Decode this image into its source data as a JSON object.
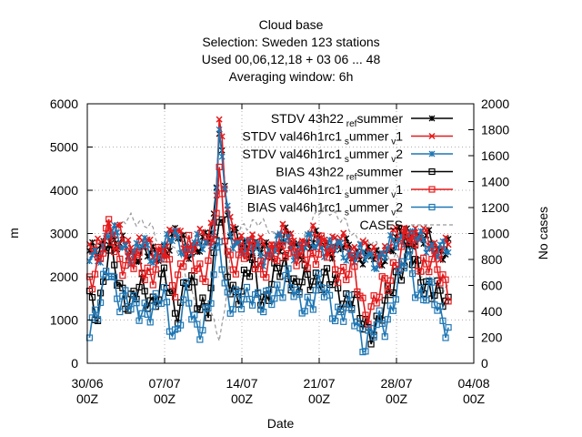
{
  "chart_data": {
    "type": "line",
    "title_lines": [
      "Cloud base",
      "Selection: Sweden    123 stations",
      "Used  00,06,12,18  + 03 06 ... 48",
      "Averaging window:  6h"
    ],
    "xlabel": "Date",
    "ylabel": "m",
    "y2label": "No cases",
    "ylim": [
      0,
      6000
    ],
    "y2lim": [
      0,
      2000
    ],
    "yticks": [
      "0",
      "1000",
      "2000",
      "3000",
      "4000",
      "5000",
      "6000"
    ],
    "y2ticks": [
      "0",
      "200",
      "400",
      "600",
      "800",
      "1000",
      "1200",
      "1400",
      "1600",
      "1800",
      "2000"
    ],
    "xticks": [
      {
        "date": "30/06",
        "hour": "00Z"
      },
      {
        "date": "07/07",
        "hour": "00Z"
      },
      {
        "date": "14/07",
        "hour": "00Z"
      },
      {
        "date": "21/07",
        "hour": "00Z"
      },
      {
        "date": "28/07",
        "hour": "00Z"
      },
      {
        "date": "04/08",
        "hour": "00Z"
      }
    ],
    "xlim_days": [
      0,
      35
    ],
    "grid": true,
    "legend_position": "top-right",
    "series": [
      {
        "name": "STDV 43h22",
        "sub": "ref",
        "mid": "summer",
        "color": "#000000",
        "marker": "star",
        "axis": "y",
        "anchors": [
          [
            0.2,
            2600
          ],
          [
            1,
            2450
          ],
          [
            2,
            3000
          ],
          [
            3,
            2700
          ],
          [
            4,
            2500
          ],
          [
            5,
            2650
          ],
          [
            6,
            2400
          ],
          [
            7,
            2700
          ],
          [
            8,
            2950
          ],
          [
            9,
            2650
          ],
          [
            10,
            2700
          ],
          [
            11,
            2800
          ],
          [
            11.6,
            3500
          ],
          [
            12,
            5900
          ],
          [
            12.5,
            3800
          ],
          [
            13,
            2900
          ],
          [
            14,
            2800
          ],
          [
            15,
            2650
          ],
          [
            16,
            2550
          ],
          [
            17,
            2700
          ],
          [
            18,
            2900
          ],
          [
            19,
            2600
          ],
          [
            20,
            2750
          ],
          [
            21,
            2800
          ],
          [
            22,
            2700
          ],
          [
            23,
            2650
          ],
          [
            24,
            2600
          ],
          [
            25,
            2500
          ],
          [
            26,
            2400
          ],
          [
            27,
            2550
          ],
          [
            28,
            2800
          ],
          [
            29,
            3050
          ],
          [
            30,
            2850
          ],
          [
            31,
            2800
          ],
          [
            32,
            2600
          ],
          [
            32.7,
            2700
          ]
        ],
        "amp": 300
      },
      {
        "name": "STDV val46h1rc1",
        "sub": "s",
        "mid": "ummer",
        "sub2": "v",
        "tail": "1",
        "color": "#e41a1c",
        "marker": "x",
        "axis": "y",
        "anchors": [
          [
            0.2,
            2500
          ],
          [
            1,
            2700
          ],
          [
            2,
            3200
          ],
          [
            3,
            2900
          ],
          [
            4,
            2700
          ],
          [
            5,
            2800
          ],
          [
            6,
            2500
          ],
          [
            7,
            2750
          ],
          [
            8,
            3000
          ],
          [
            9,
            2700
          ],
          [
            10,
            2800
          ],
          [
            11,
            2900
          ],
          [
            11.6,
            3600
          ],
          [
            12,
            5950
          ],
          [
            12.5,
            3900
          ],
          [
            13,
            3000
          ],
          [
            14,
            2900
          ],
          [
            15,
            2750
          ],
          [
            16,
            2650
          ],
          [
            17,
            2750
          ],
          [
            18,
            3000
          ],
          [
            19,
            2700
          ],
          [
            20,
            2850
          ],
          [
            21,
            2900
          ],
          [
            22,
            2800
          ],
          [
            23,
            2750
          ],
          [
            24,
            2700
          ],
          [
            25,
            2600
          ],
          [
            26,
            2500
          ],
          [
            27,
            2650
          ],
          [
            28,
            2900
          ],
          [
            29,
            3100
          ],
          [
            30,
            2900
          ],
          [
            31,
            2850
          ],
          [
            32,
            2650
          ],
          [
            32.7,
            2650
          ]
        ],
        "amp": 320
      },
      {
        "name": "STDV val46h1rc1",
        "sub": "s",
        "mid": "ummer",
        "sub2": "v",
        "tail": "2",
        "color": "#1f77b4",
        "marker": "star",
        "axis": "y",
        "anchors": [
          [
            0.2,
            2400
          ],
          [
            1,
            2500
          ],
          [
            2,
            3050
          ],
          [
            3,
            2750
          ],
          [
            4,
            2550
          ],
          [
            5,
            2700
          ],
          [
            6,
            2450
          ],
          [
            7,
            2700
          ],
          [
            8,
            2900
          ],
          [
            9,
            2650
          ],
          [
            10,
            2700
          ],
          [
            11,
            2750
          ],
          [
            11.6,
            3400
          ],
          [
            12,
            5600
          ],
          [
            12.5,
            3700
          ],
          [
            13,
            2850
          ],
          [
            14,
            2750
          ],
          [
            15,
            2600
          ],
          [
            16,
            2500
          ],
          [
            17,
            2700
          ],
          [
            18,
            2850
          ],
          [
            19,
            2600
          ],
          [
            20,
            2750
          ],
          [
            21,
            2800
          ],
          [
            22,
            2650
          ],
          [
            23,
            2600
          ],
          [
            24,
            2550
          ],
          [
            25,
            2450
          ],
          [
            26,
            2400
          ],
          [
            27,
            2550
          ],
          [
            28,
            2800
          ],
          [
            29,
            3000
          ],
          [
            30,
            2800
          ],
          [
            31,
            2750
          ],
          [
            32,
            2600
          ],
          [
            32.7,
            2550
          ]
        ],
        "amp": 300
      },
      {
        "name": "BIAS 43h22",
        "sub": "ref",
        "mid": "summer",
        "color": "#000000",
        "marker": "square",
        "axis": "y",
        "anchors": [
          [
            0.2,
            1500
          ],
          [
            1,
            1300
          ],
          [
            2,
            2500
          ],
          [
            3,
            1800
          ],
          [
            4,
            1400
          ],
          [
            5,
            1700
          ],
          [
            6,
            1500
          ],
          [
            7,
            1900
          ],
          [
            8,
            1200
          ],
          [
            9,
            2000
          ],
          [
            10,
            1300
          ],
          [
            11,
            1500
          ],
          [
            11.6,
            2600
          ],
          [
            12,
            3400
          ],
          [
            12.5,
            2400
          ],
          [
            13,
            1800
          ],
          [
            14,
            1700
          ],
          [
            15,
            2200
          ],
          [
            16,
            1500
          ],
          [
            17,
            1900
          ],
          [
            18,
            2400
          ],
          [
            19,
            1700
          ],
          [
            20,
            1900
          ],
          [
            21,
            2100
          ],
          [
            22,
            1800
          ],
          [
            23,
            1600
          ],
          [
            24,
            1500
          ],
          [
            25,
            800
          ],
          [
            26,
            900
          ],
          [
            27,
            1200
          ],
          [
            28,
            2100
          ],
          [
            29,
            2600
          ],
          [
            30,
            2000
          ],
          [
            31,
            1900
          ],
          [
            32,
            1400
          ],
          [
            32.7,
            1300
          ]
        ],
        "amp": 450
      },
      {
        "name": "BIAS val46h1rc1",
        "sub": "s",
        "mid": "ummer",
        "sub2": "v",
        "tail": "1",
        "color": "#e41a1c",
        "marker": "square",
        "axis": "y",
        "anchors": [
          [
            0.2,
            2100
          ],
          [
            1,
            2300
          ],
          [
            2,
            3000
          ],
          [
            3,
            2500
          ],
          [
            4,
            2200
          ],
          [
            5,
            2300
          ],
          [
            6,
            2100
          ],
          [
            7,
            2500
          ],
          [
            8,
            1900
          ],
          [
            9,
            2600
          ],
          [
            10,
            2200
          ],
          [
            11,
            2300
          ],
          [
            11.6,
            3100
          ],
          [
            12,
            4300
          ],
          [
            12.5,
            3000
          ],
          [
            13,
            2400
          ],
          [
            14,
            2300
          ],
          [
            15,
            2700
          ],
          [
            16,
            2100
          ],
          [
            17,
            2400
          ],
          [
            18,
            2900
          ],
          [
            19,
            2300
          ],
          [
            20,
            2500
          ],
          [
            21,
            2700
          ],
          [
            22,
            2400
          ],
          [
            23,
            2200
          ],
          [
            24,
            2100
          ],
          [
            25,
            1300
          ],
          [
            26,
            1400
          ],
          [
            27,
            1700
          ],
          [
            28,
            2500
          ],
          [
            29,
            2900
          ],
          [
            30,
            2400
          ],
          [
            31,
            2400
          ],
          [
            32,
            1900
          ],
          [
            32.7,
            1800
          ]
        ],
        "amp": 450
      },
      {
        "name": "BIAS val46h1rc1",
        "sub": "s",
        "mid": "ummer",
        "sub2": "v",
        "tail": "2",
        "color": "#1f77b4",
        "marker": "square",
        "axis": "y",
        "anchors": [
          [
            0.2,
            1000
          ],
          [
            1,
            1100
          ],
          [
            2,
            2300
          ],
          [
            3,
            1500
          ],
          [
            4,
            1200
          ],
          [
            5,
            1400
          ],
          [
            6,
            1100
          ],
          [
            7,
            1600
          ],
          [
            8,
            600
          ],
          [
            9,
            1500
          ],
          [
            10,
            900
          ],
          [
            11,
            1100
          ],
          [
            11.6,
            2100
          ],
          [
            12,
            3000
          ],
          [
            12.5,
            1800
          ],
          [
            13,
            1400
          ],
          [
            14,
            1300
          ],
          [
            15,
            1800
          ],
          [
            16,
            1200
          ],
          [
            17,
            1600
          ],
          [
            18,
            2100
          ],
          [
            19,
            1300
          ],
          [
            20,
            1500
          ],
          [
            21,
            1700
          ],
          [
            22,
            1400
          ],
          [
            23,
            1200
          ],
          [
            24,
            1100
          ],
          [
            25,
            600
          ],
          [
            26,
            700
          ],
          [
            27,
            900
          ],
          [
            28,
            1800
          ],
          [
            29,
            2400
          ],
          [
            30,
            1700
          ],
          [
            31,
            1600
          ],
          [
            32,
            1100
          ],
          [
            32.7,
            1000
          ]
        ],
        "amp": 450
      },
      {
        "name": "CASES",
        "color": "#999999",
        "marker": "none",
        "dash": true,
        "axis": "y2",
        "anchors": [
          [
            0.2,
            820
          ],
          [
            2,
            900
          ],
          [
            3,
            1050
          ],
          [
            4,
            1120
          ],
          [
            5,
            1100
          ],
          [
            6,
            1000
          ],
          [
            7,
            820
          ],
          [
            8,
            900
          ],
          [
            9,
            650
          ],
          [
            10,
            450
          ],
          [
            11,
            380
          ],
          [
            11.6,
            300
          ],
          [
            12,
            200
          ],
          [
            12.5,
            450
          ],
          [
            13,
            900
          ],
          [
            14,
            1050
          ],
          [
            15,
            1100
          ],
          [
            16,
            1050
          ],
          [
            17,
            1000
          ],
          [
            18,
            900
          ],
          [
            19,
            850
          ],
          [
            20,
            1050
          ],
          [
            21,
            1150
          ],
          [
            22,
            1200
          ],
          [
            23,
            1100
          ],
          [
            24,
            1000
          ],
          [
            25,
            950
          ],
          [
            26,
            900
          ],
          [
            27,
            850
          ],
          [
            28,
            800
          ],
          [
            29,
            750
          ],
          [
            30,
            700
          ],
          [
            31,
            650
          ],
          [
            32,
            600
          ],
          [
            32.7,
            580
          ]
        ],
        "amp": 60
      }
    ]
  }
}
